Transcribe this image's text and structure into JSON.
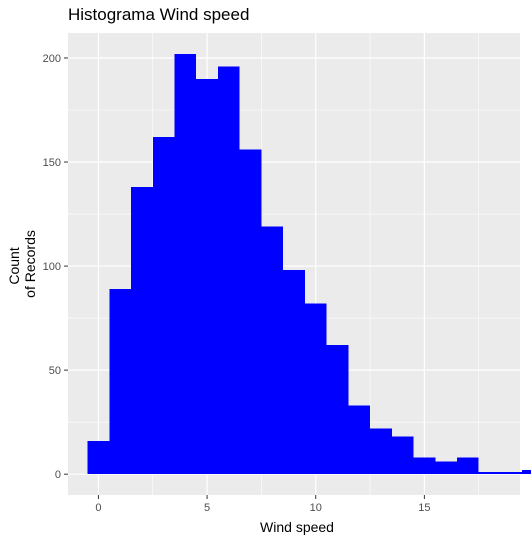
{
  "chart_data": {
    "type": "bar",
    "title": "Histograma Wind speed",
    "xlabel": "Wind speed",
    "ylabel_lines": [
      "Count",
      "of Records"
    ],
    "bin_width": 1,
    "bins": [
      {
        "x0": -0.5,
        "x1": 0.5,
        "count": 16
      },
      {
        "x0": 0.5,
        "x1": 1.5,
        "count": 89
      },
      {
        "x0": 1.5,
        "x1": 2.5,
        "count": 138
      },
      {
        "x0": 2.5,
        "x1": 3.5,
        "count": 162
      },
      {
        "x0": 3.5,
        "x1": 4.5,
        "count": 202
      },
      {
        "x0": 4.5,
        "x1": 5.5,
        "count": 190
      },
      {
        "x0": 5.5,
        "x1": 6.5,
        "count": 196
      },
      {
        "x0": 6.5,
        "x1": 7.5,
        "count": 156
      },
      {
        "x0": 7.5,
        "x1": 8.5,
        "count": 119
      },
      {
        "x0": 8.5,
        "x1": 9.5,
        "count": 98
      },
      {
        "x0": 9.5,
        "x1": 10.5,
        "count": 82
      },
      {
        "x0": 10.5,
        "x1": 11.5,
        "count": 62
      },
      {
        "x0": 11.5,
        "x1": 12.5,
        "count": 33
      },
      {
        "x0": 12.5,
        "x1": 13.5,
        "count": 22
      },
      {
        "x0": 13.5,
        "x1": 14.5,
        "count": 18
      },
      {
        "x0": 14.5,
        "x1": 15.5,
        "count": 8
      },
      {
        "x0": 15.5,
        "x1": 16.5,
        "count": 6
      },
      {
        "x0": 16.5,
        "x1": 17.5,
        "count": 8
      },
      {
        "x0": 17.5,
        "x1": 18.5,
        "count": 1
      },
      {
        "x0": 18.5,
        "x1": 19.5,
        "count": 1
      },
      {
        "x0": 19.5,
        "x1": 20.5,
        "count": 2
      }
    ],
    "xticks": [
      0,
      5,
      10,
      15
    ],
    "yticks": [
      0,
      50,
      100,
      150,
      200
    ],
    "xlim": [
      -1.4,
      19.4
    ],
    "ylim": [
      -10,
      212
    ],
    "grid": true,
    "bar_color": "#0000ff",
    "panel_background": "#ebebeb",
    "grid_color": "#ffffff"
  }
}
